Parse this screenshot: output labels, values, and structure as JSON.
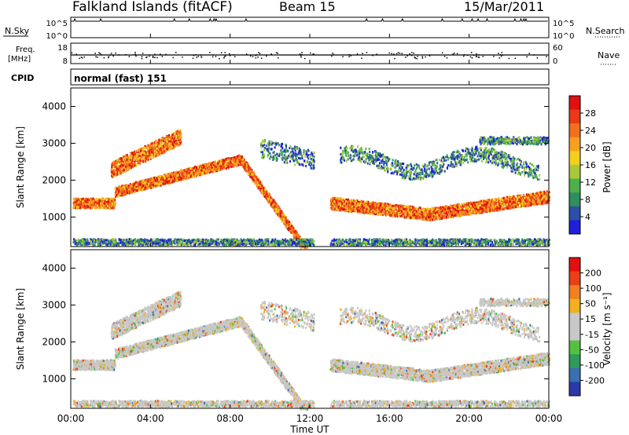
{
  "header": {
    "station": "Falkland Islands (fitACF)",
    "beam": "Beam 15",
    "date": "15/Mar/2011"
  },
  "panels": {
    "nsky_label": "N.Sky",
    "nsearch_label": "N.Search",
    "freq_label_line1": "Freq.",
    "freq_label_line2": "[MHz]",
    "nave_label": "Nave",
    "cpid_label": "CPID",
    "cpid_value": "normal (fast) 151",
    "noise_left_ticks": [
      "10^5",
      "10^0"
    ],
    "noise_right_ticks": [
      "10^5",
      "10^0"
    ],
    "freq_left_ticks": [
      "18",
      "8"
    ],
    "freq_right_ticks": [
      "60",
      "0"
    ]
  },
  "colors": {
    "power_scale": [
      "#1f1fd8",
      "#2c4fa8",
      "#2f8f5e",
      "#4bb04b",
      "#a8c83a",
      "#f0d020",
      "#f5a020",
      "#f07020",
      "#e83a18",
      "#e01010"
    ],
    "velocity_scale": [
      "#2a3aa8",
      "#3a6fb0",
      "#2f9a5a",
      "#55c040",
      "#c8c8c8",
      "#c8c8c8",
      "#f0b020",
      "#f08020",
      "#e84018",
      "#e01010"
    ]
  },
  "chart_data": [
    {
      "type": "heatmap",
      "name_printed": "",
      "ylabel": "Slant Range [km]",
      "yticks": [
        "1000",
        "2000",
        "3000",
        "4000"
      ],
      "ylim": [
        200,
        4500
      ],
      "xlim_hours": [
        0,
        24
      ],
      "xticks": [
        "00:00",
        "04:00",
        "08:00",
        "12:00",
        "16:00",
        "20:00",
        "00:00"
      ],
      "colorbar_label": "Power [dB]",
      "colorbar_ticks": [
        "28",
        "24",
        "20",
        "16",
        "12",
        "8",
        "4"
      ],
      "colorbar_range": [
        0,
        30
      ],
      "data_gap_hours": [
        12.2,
        13.0
      ]
    },
    {
      "type": "heatmap",
      "ylabel": "Slant Range [km]",
      "yticks": [
        "1000",
        "2000",
        "3000",
        "4000"
      ],
      "ylim": [
        200,
        4500
      ],
      "xlim_hours": [
        0,
        24
      ],
      "xlabel": "Time UT",
      "xticks": [
        "00:00",
        "04:00",
        "08:00",
        "12:00",
        "16:00",
        "20:00",
        "00:00"
      ],
      "colorbar_label": "Velocity [m s⁻¹]",
      "colorbar_ticks": [
        "200",
        "100",
        "50",
        "15",
        "-15",
        "-50",
        "-100",
        "-200"
      ],
      "data_gap_hours": [
        12.2,
        13.0
      ]
    }
  ]
}
